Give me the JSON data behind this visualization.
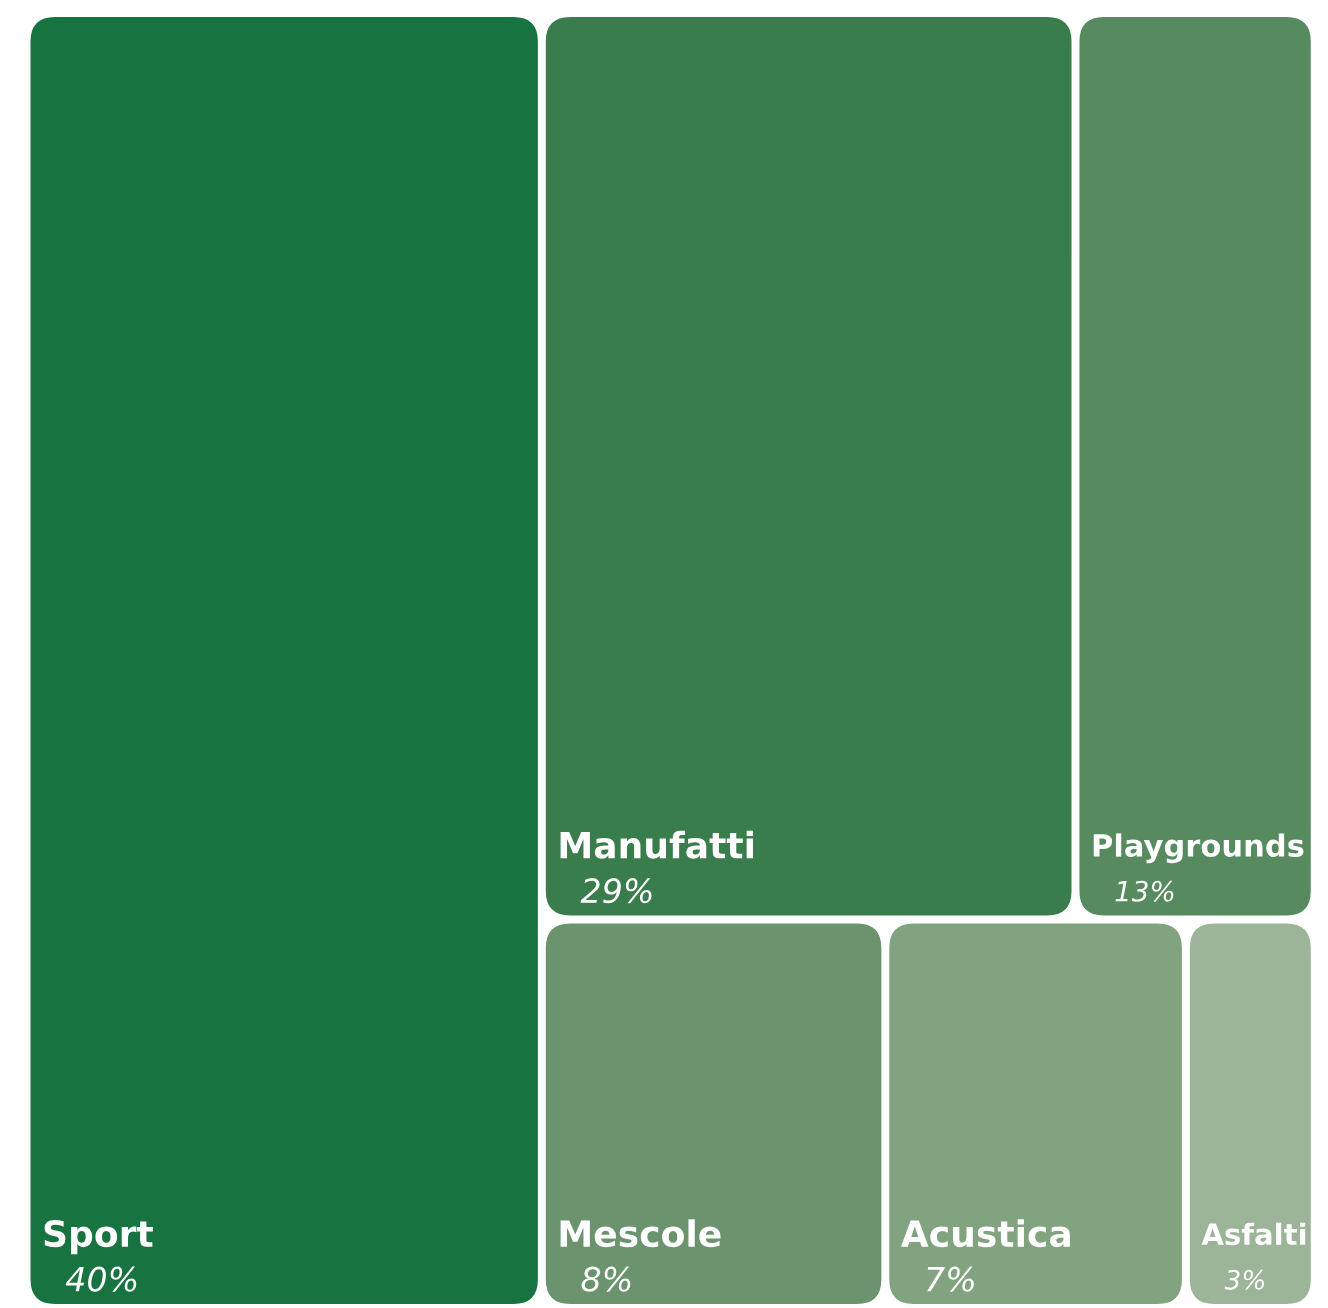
{
  "chart_data": {
    "type": "other",
    "categories": [
      "Sport",
      "Manufatti",
      "Playgrounds",
      "Mescole",
      "Acustica",
      "Asfalti"
    ],
    "values": [
      40,
      29,
      13,
      8,
      7,
      3
    ],
    "value_labels": [
      "40%",
      "29%",
      "13%",
      "8%",
      "7%",
      "3%"
    ],
    "colors": [
      "#17733f",
      "#3a7d4d",
      "#578a5f",
      "#6b946e",
      "#82a37f",
      "#9cb498"
    ]
  }
}
